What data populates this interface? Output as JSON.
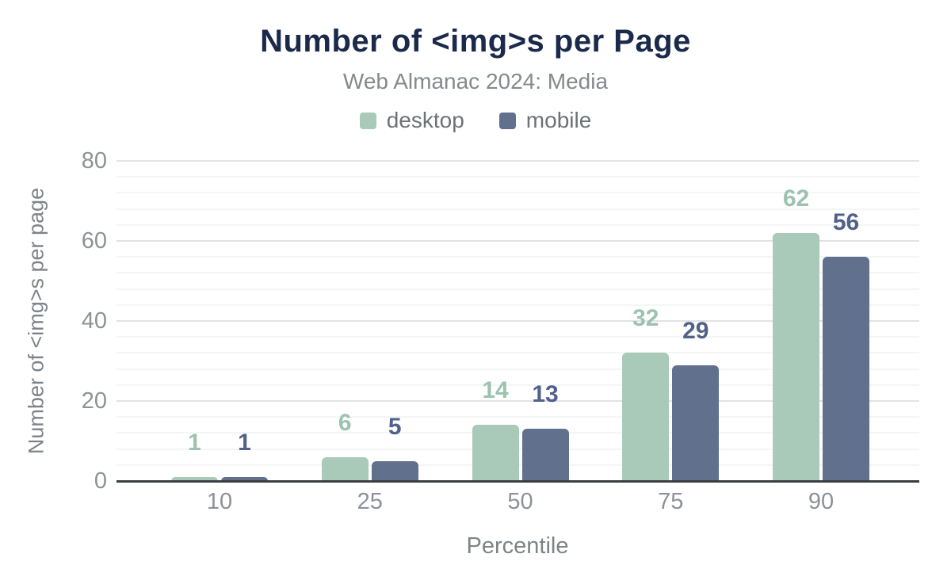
{
  "header": {
    "title": "Number of <img>s per Page",
    "subtitle": "Web Almanac 2024: Media"
  },
  "chart_data": {
    "type": "bar",
    "title": "Number of <img>s per Page",
    "subtitle": "Web Almanac 2024: Media",
    "categories": [
      "10",
      "25",
      "50",
      "75",
      "90"
    ],
    "series": [
      {
        "name": "desktop",
        "color": "#a9c9b9",
        "label_color": "#9cc2b0",
        "values": [
          1,
          6,
          14,
          32,
          62
        ]
      },
      {
        "name": "mobile",
        "color": "#60708d",
        "label_color": "#51628a",
        "values": [
          1,
          5,
          13,
          29,
          56
        ]
      }
    ],
    "xlabel": "Percentile",
    "ylabel": "Number of <img>s per page",
    "ylim": [
      0,
      80
    ],
    "y_major_ticks": [
      0,
      20,
      40,
      60,
      80
    ],
    "y_minor_step": 4,
    "grid": true,
    "legend_position": "top",
    "bar_value_labels": true
  },
  "colors": {
    "title": "#1b2a4a",
    "subtitle_text": "#84898d",
    "tick_text": "#8d9297",
    "axis_title_text": "#7d8387",
    "legend_text": "#6d7276",
    "gridline_major": "#e1e3e4",
    "gridline_minor": "#f4f5f5",
    "axis_line": "#3b3e40",
    "background": "#ffffff"
  }
}
